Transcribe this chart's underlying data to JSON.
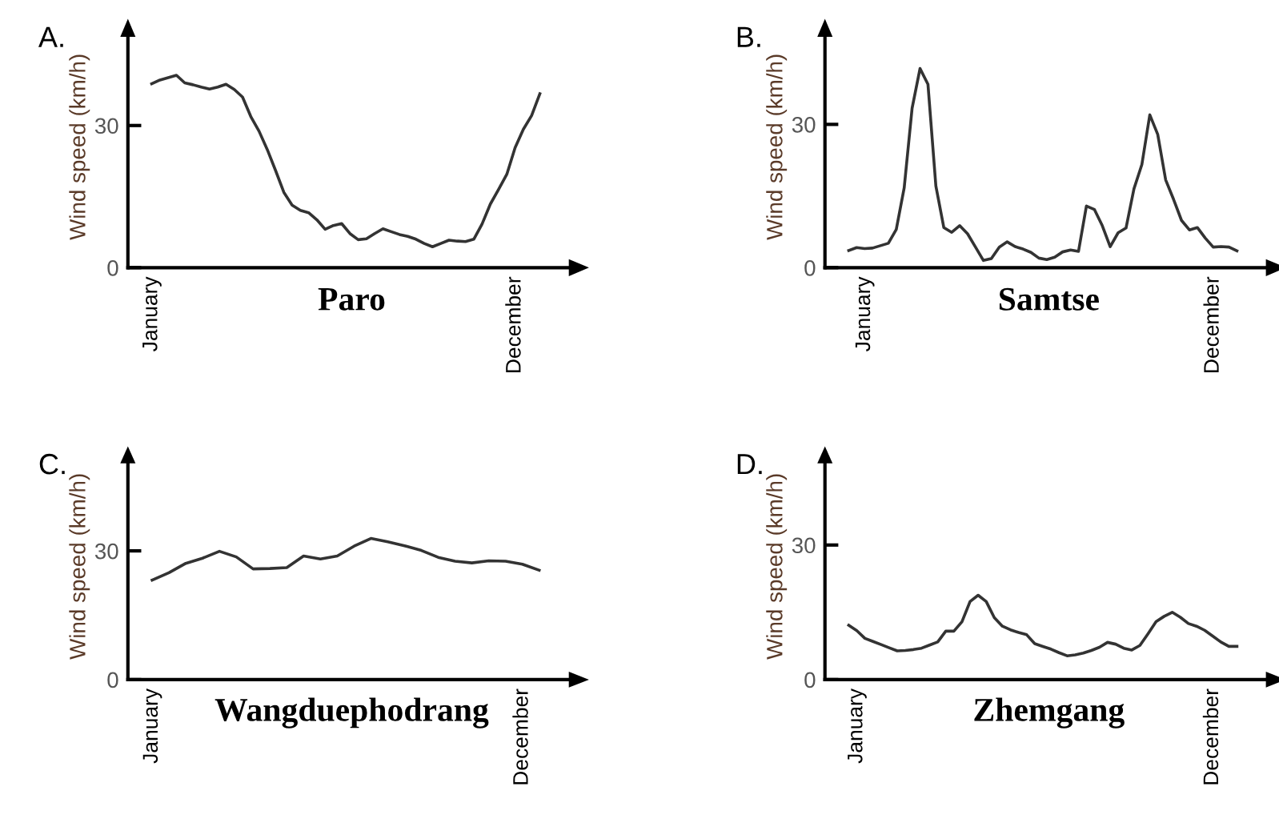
{
  "chart_data": [
    {
      "type": "line",
      "title": "Paro",
      "annotations": [
        "A."
      ],
      "ylabel": "Wind speed (km/h)",
      "ylim": [
        0,
        51
      ],
      "yticks": [
        0,
        30
      ],
      "grid": false,
      "categories": [
        "January",
        null,
        null,
        null,
        null,
        null,
        null,
        null,
        null,
        null,
        null,
        null,
        null,
        null,
        null,
        null,
        null,
        null,
        null,
        null,
        null,
        null,
        null,
        null,
        null,
        null,
        null,
        null,
        null,
        null,
        null,
        null,
        null,
        null,
        null,
        null,
        null,
        null,
        null,
        null,
        null,
        null,
        null,
        null,
        "December",
        null,
        null,
        null
      ],
      "series": [
        {
          "color": "#333333",
          "values": [
            38.8,
            39.6,
            40.1,
            40.6,
            39.0,
            38.6,
            38.1,
            37.7,
            38.1,
            38.7,
            37.6,
            36.0,
            31.9,
            28.8,
            24.9,
            20.5,
            15.9,
            13.2,
            12.1,
            11.6,
            10.1,
            8.1,
            8.9,
            9.3,
            7.2,
            5.9,
            6.1,
            7.2,
            8.2,
            7.6,
            7.0,
            6.6,
            6.0,
            5.1,
            4.4,
            5.1,
            5.8,
            5.6,
            5.5,
            6.0,
            9.2,
            13.4,
            16.5,
            19.7,
            25.3,
            29.2,
            32.1,
            36.7
          ]
        }
      ]
    },
    {
      "type": "line",
      "title": "Samtse",
      "annotations": [
        "B."
      ],
      "ylabel": "Wind speed (km/h)",
      "ylim": [
        0,
        50.6
      ],
      "yticks": [
        0,
        30
      ],
      "grid": false,
      "categories": [
        null,
        null,
        "January",
        null,
        null,
        null,
        null,
        null,
        null,
        null,
        null,
        null,
        null,
        null,
        null,
        null,
        null,
        null,
        null,
        null,
        null,
        null,
        null,
        null,
        null,
        null,
        null,
        null,
        null,
        null,
        null,
        null,
        null,
        null,
        null,
        null,
        null,
        null,
        null,
        null,
        null,
        null,
        null,
        null,
        null,
        null,
        "December",
        null,
        null,
        null
      ],
      "series": [
        {
          "color": "#333333",
          "values": [
            3.6,
            4.2,
            4.0,
            4.1,
            4.6,
            5.1,
            8.0,
            16.7,
            33.4,
            41.7,
            38.4,
            17.1,
            8.4,
            7.4,
            8.8,
            7.1,
            4.3,
            1.5,
            1.9,
            4.3,
            5.4,
            4.4,
            3.9,
            3.2,
            2.0,
            1.7,
            2.2,
            3.3,
            3.7,
            3.4,
            12.9,
            12.2,
            8.8,
            4.4,
            7.3,
            8.3,
            16.5,
            21.6,
            32.0,
            27.9,
            18.4,
            14.3,
            9.9,
            7.9,
            8.4,
            6.2,
            4.3,
            4.4,
            4.3,
            3.5
          ]
        }
      ]
    },
    {
      "type": "line",
      "title": "Wangduephodrang",
      "annotations": [
        "C."
      ],
      "ylabel": "Wind speed (km/h)",
      "ylim": [
        0,
        52.8
      ],
      "yticks": [
        0,
        30
      ],
      "grid": false,
      "categories": [
        "January",
        null,
        null,
        null,
        null,
        null,
        null,
        null,
        null,
        null,
        null,
        null,
        null,
        null,
        null,
        null,
        null,
        null,
        null,
        null,
        null,
        null,
        "December",
        null
      ],
      "series": [
        {
          "color": "#333333",
          "values": [
            23.2,
            24.9,
            27.1,
            28.3,
            29.9,
            28.6,
            25.8,
            25.9,
            26.1,
            28.8,
            28.1,
            28.8,
            31.1,
            32.9,
            32.1,
            31.2,
            30.1,
            28.5,
            27.6,
            27.2,
            27.7,
            27.6,
            26.9,
            25.5
          ]
        }
      ]
    },
    {
      "type": "line",
      "title": "Zhemgang",
      "annotations": [
        "D."
      ],
      "ylabel": "Wind speed (km/h)",
      "ylim": [
        0,
        50.5
      ],
      "yticks": [
        0,
        30
      ],
      "grid": false,
      "categories": [
        null,
        "January",
        null,
        null,
        null,
        null,
        null,
        null,
        null,
        null,
        null,
        null,
        null,
        null,
        null,
        null,
        null,
        null,
        null,
        null,
        null,
        null,
        null,
        null,
        null,
        null,
        null,
        null,
        null,
        null,
        null,
        null,
        null,
        null,
        null,
        null,
        null,
        null,
        null,
        null,
        null,
        null,
        null,
        null,
        null,
        "December",
        null,
        null,
        null
      ],
      "series": [
        {
          "color": "#333333",
          "values": [
            12.1,
            10.9,
            9.2,
            8.5,
            7.8,
            7.1,
            6.4,
            6.5,
            6.7,
            7.0,
            7.7,
            8.4,
            10.8,
            10.8,
            12.9,
            17.4,
            18.8,
            17.4,
            13.8,
            11.9,
            11.1,
            10.5,
            10.0,
            8.0,
            7.4,
            6.8,
            6.0,
            5.3,
            5.5,
            5.9,
            6.5,
            7.2,
            8.3,
            7.9,
            7.0,
            6.6,
            7.6,
            10.2,
            12.9,
            14.1,
            15.0,
            13.9,
            12.5,
            11.9,
            11.0,
            9.7,
            8.4,
            7.4,
            7.4
          ]
        }
      ]
    }
  ]
}
